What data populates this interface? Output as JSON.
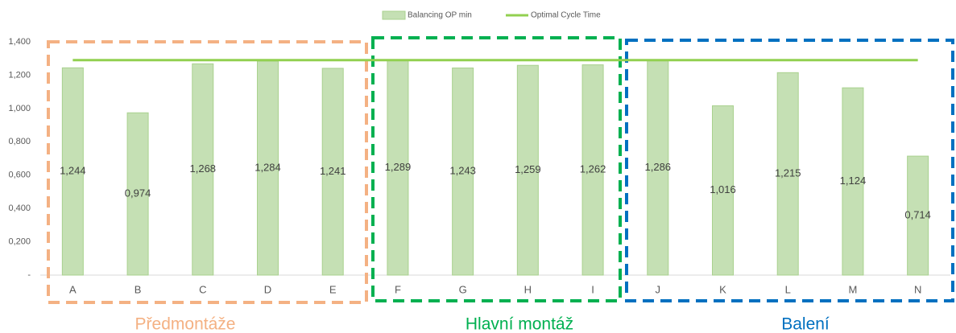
{
  "chart_data": {
    "type": "bar",
    "categories": [
      "A",
      "B",
      "C",
      "D",
      "E",
      "F",
      "G",
      "H",
      "I",
      "J",
      "K",
      "L",
      "M",
      "N"
    ],
    "series": [
      {
        "name": "Balancing OP min",
        "type": "bar",
        "color": "#c5e0b4",
        "stroke": "#a9d18e",
        "values": [
          1.244,
          0.974,
          1.268,
          1.284,
          1.241,
          1.289,
          1.243,
          1.259,
          1.262,
          1.286,
          1.016,
          1.215,
          1.124,
          0.714
        ],
        "value_labels": [
          "1,244",
          "0,974",
          "1,268",
          "1,284",
          "1,241",
          "1,289",
          "1,243",
          "1,259",
          "1,262",
          "1,286",
          "1,016",
          "1,215",
          "1,124",
          "0,714"
        ]
      },
      {
        "name": "Optimal Cycle Time",
        "type": "line",
        "color": "#92d050",
        "values": [
          1.29,
          1.29,
          1.29,
          1.29,
          1.29,
          1.29,
          1.29,
          1.29,
          1.29,
          1.29,
          1.29,
          1.29,
          1.29,
          1.29
        ]
      }
    ],
    "ylim": [
      0,
      1.4
    ],
    "yticks": [
      {
        "value": 0,
        "label": "-"
      },
      {
        "value": 0.2,
        "label": "0,200"
      },
      {
        "value": 0.4,
        "label": "0,400"
      },
      {
        "value": 0.6,
        "label": "0,600"
      },
      {
        "value": 0.8,
        "label": "0,800"
      },
      {
        "value": 1.0,
        "label": "1,000"
      },
      {
        "value": 1.2,
        "label": "1,200"
      },
      {
        "value": 1.4,
        "label": "1,400"
      }
    ],
    "grid": false,
    "legend": "top",
    "annotations": [
      {
        "text": "Předmontáže",
        "color": "#f4b183"
      },
      {
        "text": "Hlavní montáž",
        "color": "#00b050"
      },
      {
        "text": "Balení",
        "color": "#0070c0"
      }
    ]
  }
}
